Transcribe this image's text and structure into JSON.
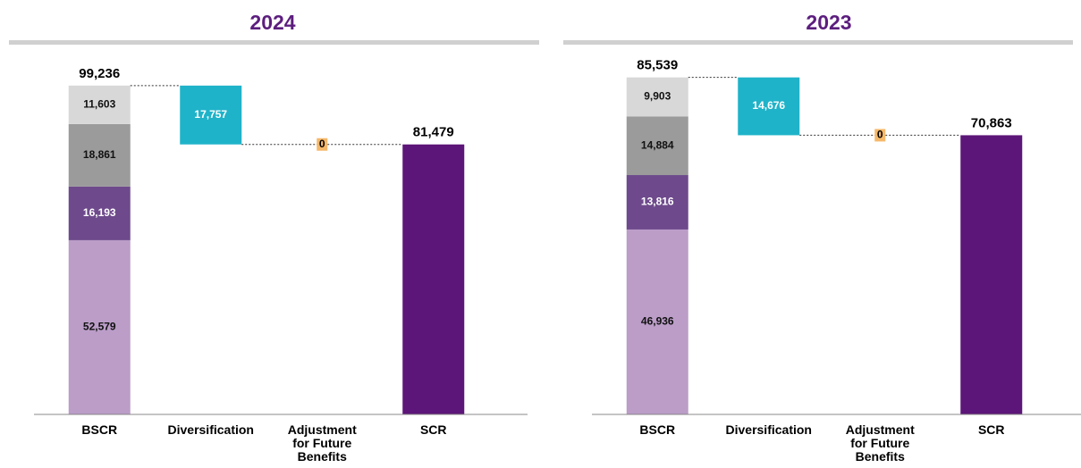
{
  "chart_data": [
    {
      "type": "waterfall",
      "title": "2024",
      "categories": [
        "BSCR",
        "Diversification",
        "Adjustment for Future Benefits",
        "SCR"
      ],
      "values": [
        99236,
        17757,
        0,
        81479
      ],
      "value_labels": [
        "99,236",
        "17,757",
        "0",
        "81,479"
      ],
      "colors": [
        "#b99bc8",
        "#1fb3c9",
        "#f5b86a",
        "#5c1578"
      ],
      "stack_values": [
        52579,
        16193,
        18861,
        11603
      ],
      "stack_labels": [
        "52,579",
        "16,193",
        "18,861",
        "11,603"
      ],
      "stack_colors": [
        "#bb9dc8",
        "#6e4a8c",
        "#9b9b9b",
        "#d8d8d8"
      ],
      "ylim": [
        0,
        100000
      ]
    },
    {
      "type": "waterfall",
      "title": "2023",
      "categories": [
        "BSCR",
        "Diversification",
        "Adjustment for Future Benefits",
        "SCR"
      ],
      "values": [
        85539,
        14676,
        0,
        70863
      ],
      "value_labels": [
        "85,539",
        "14,676",
        "0",
        "70,863"
      ],
      "colors": [
        "#b99bc8",
        "#1fb3c9",
        "#f5b86a",
        "#5c1578"
      ],
      "stack_values": [
        46936,
        13816,
        14884,
        9903
      ],
      "stack_labels": [
        "46,936",
        "13,816",
        "14,884",
        "9,903"
      ],
      "stack_colors": [
        "#bb9dc8",
        "#6e4a8c",
        "#9b9b9b",
        "#d8d8d8"
      ],
      "ylim": [
        0,
        90000
      ]
    }
  ]
}
